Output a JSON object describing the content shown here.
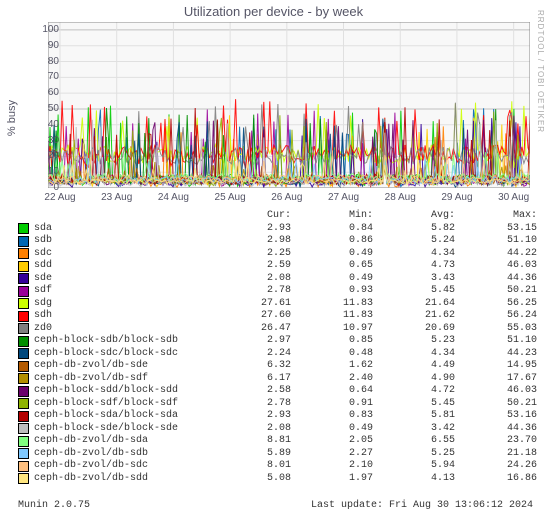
{
  "title": "Utilization per device - by week",
  "watermark": "RRDTOOL / TOBI OETIKER",
  "ylabel": "% busy",
  "ylim": [
    0,
    105
  ],
  "yticks": [
    0,
    10,
    20,
    30,
    40,
    50,
    60,
    70,
    80,
    90,
    100
  ],
  "xticks": [
    "22 Aug",
    "23 Aug",
    "24 Aug",
    "25 Aug",
    "26 Aug",
    "27 Aug",
    "28 Aug",
    "29 Aug",
    "30 Aug"
  ],
  "grid_color": "#e0e0e0",
  "major_grid_color": "#c0c0c0",
  "canvas_background": "#f8f8f8",
  "columns": [
    "Cur:",
    "Min:",
    "Avg:",
    "Max:"
  ],
  "series": [
    {
      "name": "sda",
      "color": "#00cc00",
      "cur": "2.93",
      "min": "0.84",
      "avg": "5.82",
      "max": "53.15"
    },
    {
      "name": "sdb",
      "color": "#0066b3",
      "cur": "2.98",
      "min": "0.86",
      "avg": "5.24",
      "max": "51.10"
    },
    {
      "name": "sdc",
      "color": "#ff8000",
      "cur": "2.25",
      "min": "0.49",
      "avg": "4.34",
      "max": "44.22"
    },
    {
      "name": "sdd",
      "color": "#ffcc00",
      "cur": "2.59",
      "min": "0.65",
      "avg": "4.73",
      "max": "46.03"
    },
    {
      "name": "sde",
      "color": "#330099",
      "cur": "2.08",
      "min": "0.49",
      "avg": "3.43",
      "max": "44.36"
    },
    {
      "name": "sdf",
      "color": "#990099",
      "cur": "2.78",
      "min": "0.93",
      "avg": "5.45",
      "max": "50.21"
    },
    {
      "name": "sdg",
      "color": "#ccff00",
      "cur": "27.61",
      "min": "11.83",
      "avg": "21.64",
      "max": "56.25"
    },
    {
      "name": "sdh",
      "color": "#ff0000",
      "cur": "27.60",
      "min": "11.83",
      "avg": "21.62",
      "max": "56.24"
    },
    {
      "name": "zd0",
      "color": "#808080",
      "cur": "26.47",
      "min": "10.97",
      "avg": "20.69",
      "max": "55.03"
    },
    {
      "name": "ceph-block-sdb/block-sdb",
      "color": "#008f00",
      "cur": "2.97",
      "min": "0.85",
      "avg": "5.23",
      "max": "51.10"
    },
    {
      "name": "ceph-block-sdc/block-sdc",
      "color": "#00487d",
      "cur": "2.24",
      "min": "0.48",
      "avg": "4.34",
      "max": "44.23"
    },
    {
      "name": "ceph-db-zvol/db-sde",
      "color": "#b35a00",
      "cur": "6.32",
      "min": "1.62",
      "avg": "4.49",
      "max": "14.95"
    },
    {
      "name": "ceph-db-zvol/db-sdf",
      "color": "#b38f00",
      "cur": "6.17",
      "min": "2.40",
      "avg": "4.90",
      "max": "17.67"
    },
    {
      "name": "ceph-block-sdd/block-sdd",
      "color": "#6b006b",
      "cur": "2.58",
      "min": "0.64",
      "avg": "4.72",
      "max": "46.03"
    },
    {
      "name": "ceph-block-sdf/block-sdf",
      "color": "#8fb300",
      "cur": "2.78",
      "min": "0.91",
      "avg": "5.45",
      "max": "50.21"
    },
    {
      "name": "ceph-block-sda/block-sda",
      "color": "#b30000",
      "cur": "2.93",
      "min": "0.83",
      "avg": "5.81",
      "max": "53.16"
    },
    {
      "name": "ceph-block-sde/block-sde",
      "color": "#bebebe",
      "cur": "2.08",
      "min": "0.49",
      "avg": "3.42",
      "max": "44.36"
    },
    {
      "name": "ceph-db-zvol/db-sda",
      "color": "#80ff80",
      "cur": "8.81",
      "min": "2.05",
      "avg": "6.55",
      "max": "23.70"
    },
    {
      "name": "ceph-db-zvol/db-sdb",
      "color": "#80c9ff",
      "cur": "5.89",
      "min": "2.27",
      "avg": "5.25",
      "max": "21.18"
    },
    {
      "name": "ceph-db-zvol/db-sdc",
      "color": "#ffc080",
      "cur": "8.01",
      "min": "2.10",
      "avg": "5.94",
      "max": "24.26"
    },
    {
      "name": "ceph-db-zvol/db-sdd",
      "color": "#ffe680",
      "cur": "5.08",
      "min": "1.97",
      "avg": "4.13",
      "max": "16.86"
    }
  ],
  "footer_left": "Munin 2.0.75",
  "footer_right": "Last update: Fri Aug 30 13:06:12 2024"
}
